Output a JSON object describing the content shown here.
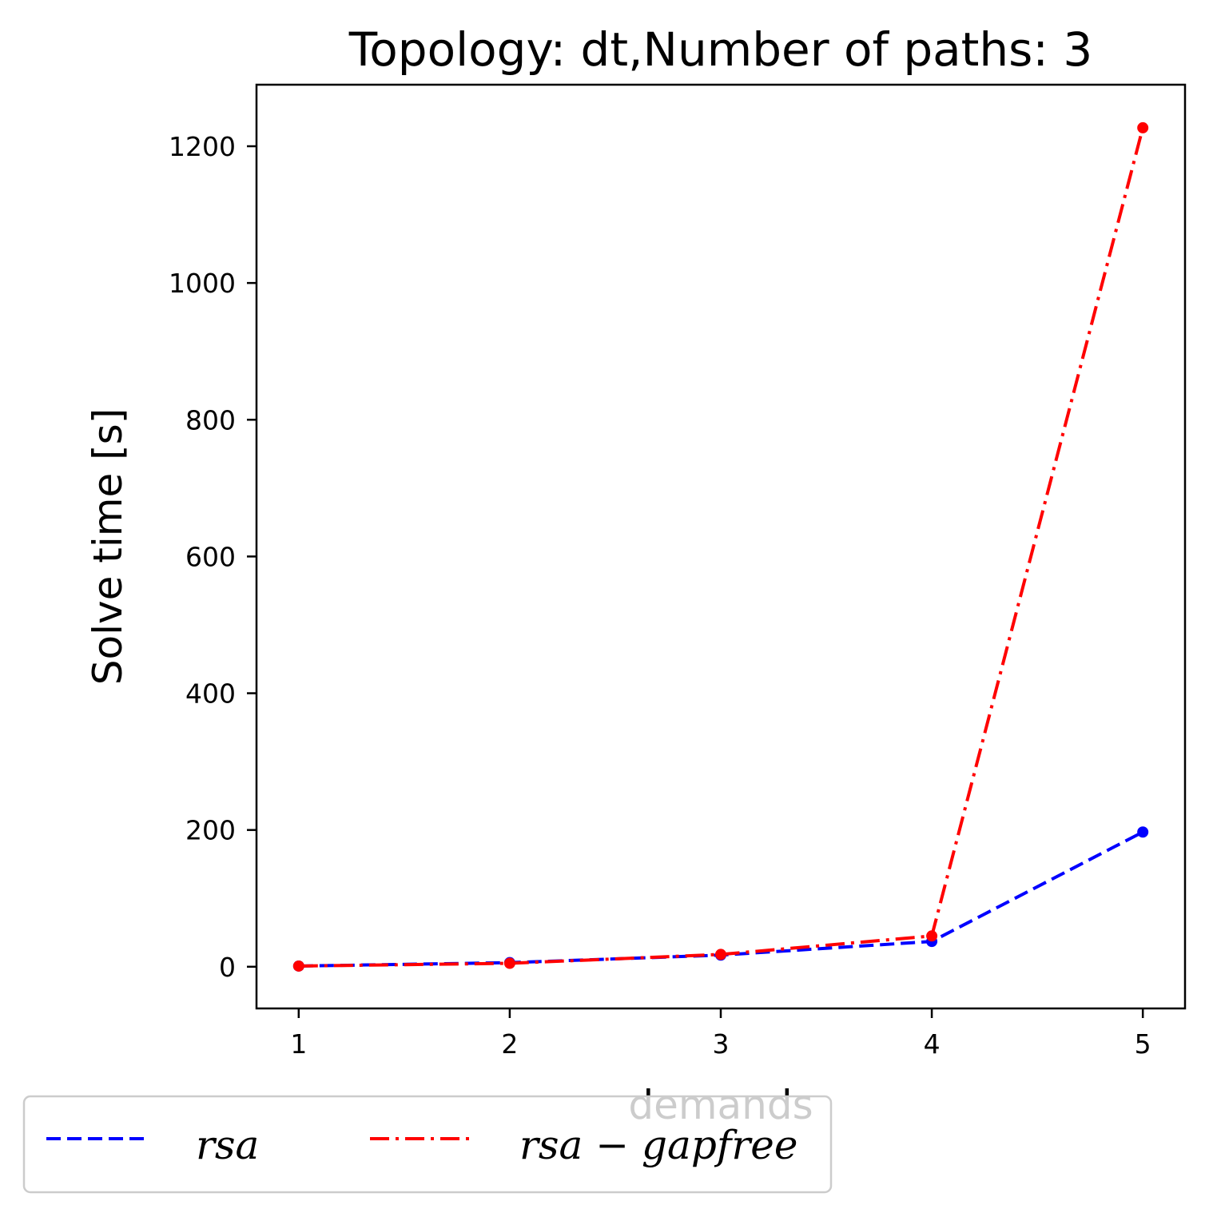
{
  "chart_data": {
    "type": "line",
    "title": "Topology: dt,Number of paths: 3",
    "xlabel": "demands",
    "ylabel": "Solve time [s]",
    "x": [
      1,
      2,
      3,
      4,
      5
    ],
    "xticks": [
      "1",
      "2",
      "3",
      "4",
      "5"
    ],
    "yticks": [
      "0",
      "200",
      "400",
      "600",
      "800",
      "1000",
      "1200"
    ],
    "xlim": [
      0.8,
      5.2
    ],
    "ylim": [
      -61,
      1290
    ],
    "grid": false,
    "legend_position": "bottom-left",
    "series": [
      {
        "name": "rsa",
        "values": [
          1,
          6,
          17,
          37,
          197
        ],
        "color": "#0000ff",
        "linestyle": "dashed"
      },
      {
        "name": "rsa − gapfree",
        "values": [
          1,
          5,
          18,
          45,
          1227
        ],
        "color": "#ff0000",
        "linestyle": "dashdot"
      }
    ]
  }
}
